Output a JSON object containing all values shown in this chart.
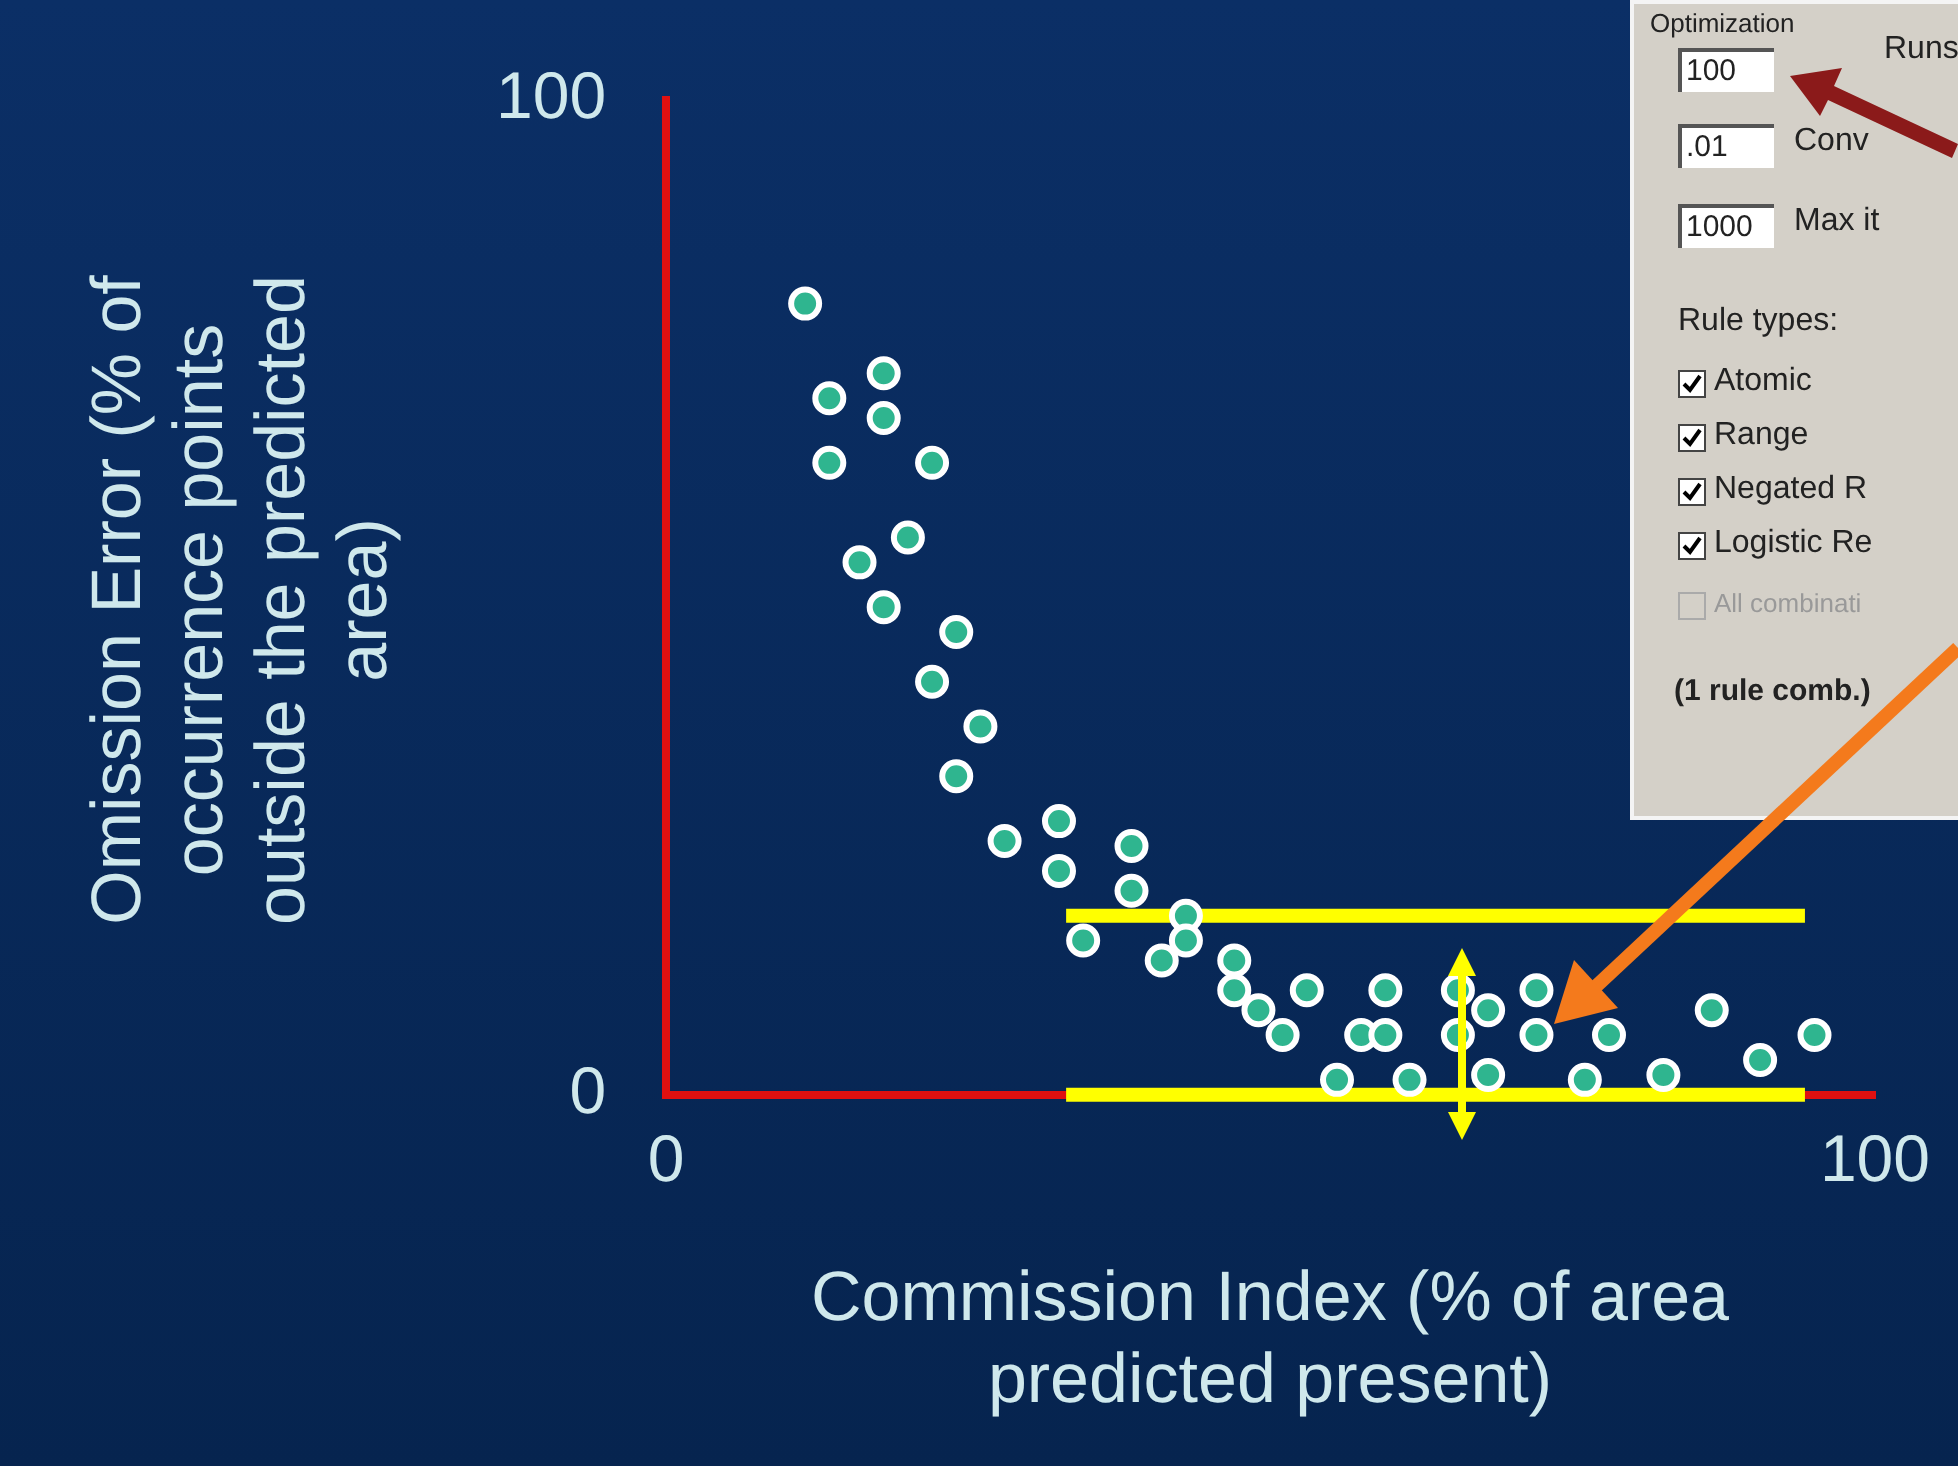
{
  "chart_data": {
    "type": "scatter",
    "xlabel": "Commission Index (% of area predicted present)",
    "ylabel": "Omission Error (% of occurrence points outside the predicted area)",
    "xlim": [
      0,
      100
    ],
    "ylim": [
      0,
      100
    ],
    "xticks": [
      0,
      100
    ],
    "yticks": [
      0,
      100
    ],
    "grid": false,
    "legend": false,
    "marker": "circle",
    "series": [
      {
        "color": "#2fb58f",
        "x": [
          11.5,
          18,
          13.5,
          18,
          13.5,
          22,
          20,
          16,
          18,
          24,
          22,
          26,
          24,
          28,
          32.5,
          32.5,
          38.5,
          38.5,
          43,
          34.5,
          43,
          41,
          47,
          47,
          53,
          59.5,
          65.5,
          72,
          49,
          51,
          57.5,
          59.5,
          65.5,
          68,
          72,
          78,
          86.5,
          95,
          90.5,
          55.5,
          61.5,
          68,
          76,
          82.5
        ],
        "values": [
          79.5,
          72.5,
          70,
          68,
          63.5,
          63.5,
          56,
          53.5,
          49,
          46.5,
          41.5,
          37,
          32,
          25.5,
          27.5,
          22.5,
          25,
          20.5,
          18,
          15.5,
          15.5,
          13.5,
          13.5,
          10.5,
          10.5,
          10.5,
          10.5,
          10.5,
          8.5,
          6,
          6,
          6,
          6,
          8.5,
          6,
          6,
          8.5,
          6,
          3.5,
          1.5,
          1.5,
          2,
          1.5,
          2
        ]
      }
    ],
    "ref_lines": [
      {
        "axis": "y",
        "value": 18,
        "color": "#ffff00"
      },
      {
        "axis": "y",
        "value": 0,
        "color": "#ffff00"
      }
    ],
    "annotations": [
      "Optimization",
      "100",
      "Runs",
      ".01",
      "Conv",
      "1000",
      "Max it",
      "Rule types:",
      "Atomic",
      "Range",
      "Negated R",
      "Logistic Re",
      "All combinati",
      "(1 rule comb.)"
    ]
  }
}
